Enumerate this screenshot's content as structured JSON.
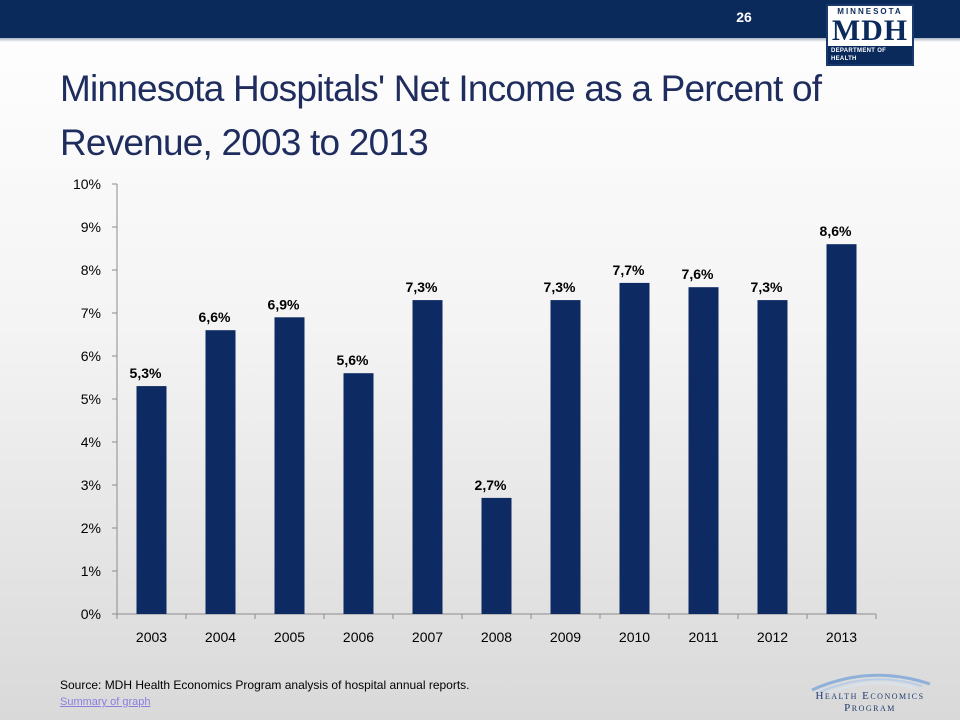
{
  "slide": {
    "page_number": "26",
    "title": "Minnesota Hospitals' Net Income as a Percent of Revenue, 2003 to 2013",
    "source": "Source: MDH Health Economics Program analysis of hospital annual reports.",
    "summary_link": "Summary of graph"
  },
  "logo": {
    "state": "MINNESOTA",
    "main": "MDH",
    "department": "DEPARTMENT OF HEALTH"
  },
  "footer_logo": {
    "text": "Health Economics Program"
  },
  "colors": {
    "top_bar": "#0b2a5c",
    "bar": "#0d2a63",
    "title": "#1f2d5e"
  },
  "chart_data": {
    "type": "bar",
    "categories": [
      "2003",
      "2004",
      "2005",
      "2006",
      "2007",
      "2008",
      "2009",
      "2010",
      "2011",
      "2012",
      "2013"
    ],
    "values": [
      5.3,
      6.6,
      6.9,
      5.6,
      7.3,
      2.7,
      7.3,
      7.7,
      7.6,
      7.3,
      8.6
    ],
    "data_labels": [
      "5,3%",
      "6,6%",
      "6,9%",
      "5,6%",
      "7,3%",
      "2,7%",
      "7,3%",
      "7,7%",
      "7,6%",
      "7,3%",
      "8,6%"
    ],
    "y_ticks": [
      "0%",
      "1%",
      "2%",
      "3%",
      "4%",
      "5%",
      "6%",
      "7%",
      "8%",
      "9%",
      "10%"
    ],
    "ylim": [
      0,
      10
    ],
    "title": "",
    "xlabel": "",
    "ylabel": "",
    "grid": false,
    "legend": "none"
  }
}
